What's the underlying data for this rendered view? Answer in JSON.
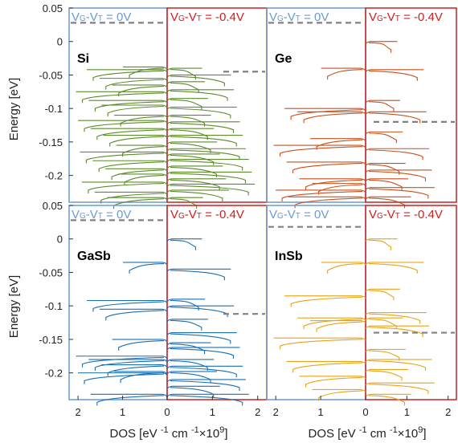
{
  "chart_data": {
    "type": "line",
    "y_axis_label": "Energy [eV]",
    "x_axis_label": "DOS [eV -1 cm -1 ×10 9 ]",
    "y_ticks": [
      "0.05",
      "0",
      "-0.05",
      "-0.1",
      "-0.15",
      "-0.2"
    ],
    "ylim": [
      -0.24,
      0.05
    ],
    "x_ticks_left": [
      "2",
      "1",
      "0"
    ],
    "x_ticks_right": [
      "0",
      "1",
      "2"
    ],
    "xlim": [
      0,
      2.2
    ],
    "bias_left": "VG-VT = 0V",
    "bias_right": "VG-VT = -0.4V",
    "colors": {
      "Si": "#5a8a2a",
      "Ge": "#c8501c",
      "GaSb": "#1a6fb3",
      "InSb": "#e8a418",
      "left_frame": "#6a9ad6",
      "right_frame": "#cc2020",
      "fermi": "#808080"
    },
    "panels": [
      {
        "material": "Si",
        "fermi_left": 0.028,
        "fermi_right": -0.045,
        "left_levels": [
          -0.038,
          -0.042,
          -0.055,
          -0.065,
          -0.075,
          -0.088,
          -0.095,
          -0.11,
          -0.118,
          -0.13,
          -0.14,
          -0.155,
          -0.165,
          -0.178,
          -0.19,
          -0.198,
          -0.21,
          -0.225,
          -0.233
        ],
        "right_levels": [
          -0.04,
          -0.05,
          -0.06,
          -0.072,
          -0.085,
          -0.098,
          -0.11,
          -0.12,
          -0.13,
          -0.14,
          -0.15,
          -0.16,
          -0.168,
          -0.176,
          -0.186,
          -0.195,
          -0.205,
          -0.213,
          -0.222,
          -0.233
        ]
      },
      {
        "material": "Ge",
        "fermi_left": 0.028,
        "fermi_right": -0.12,
        "left_levels": [
          -0.04,
          -0.1,
          -0.105,
          -0.145,
          -0.155,
          -0.18,
          -0.205,
          -0.212,
          -0.222,
          -0.232
        ],
        "right_levels": [
          0.0,
          -0.042,
          -0.088,
          -0.105,
          -0.135,
          -0.16,
          -0.182,
          -0.192,
          -0.205,
          -0.218,
          -0.232
        ]
      },
      {
        "material": "GaSb",
        "fermi_left": 0.028,
        "fermi_right": -0.112,
        "left_levels": [
          -0.035,
          -0.092,
          -0.105,
          -0.15,
          -0.175,
          -0.18,
          -0.188,
          -0.198,
          -0.2,
          -0.232
        ],
        "right_levels": [
          0.0,
          -0.045,
          -0.09,
          -0.1,
          -0.12,
          -0.14,
          -0.155,
          -0.162,
          -0.18,
          -0.19,
          -0.198,
          -0.21,
          -0.22,
          -0.232
        ]
      },
      {
        "material": "InSb",
        "fermi_left": 0.018,
        "fermi_right": -0.14,
        "left_levels": [
          -0.035,
          -0.085,
          -0.118,
          -0.122,
          -0.148,
          -0.183,
          -0.205,
          -0.225
        ],
        "right_levels": [
          0.0,
          -0.035,
          -0.075,
          -0.11,
          -0.118,
          -0.13,
          -0.165,
          -0.18,
          -0.195,
          -0.215,
          -0.232
        ]
      }
    ]
  }
}
